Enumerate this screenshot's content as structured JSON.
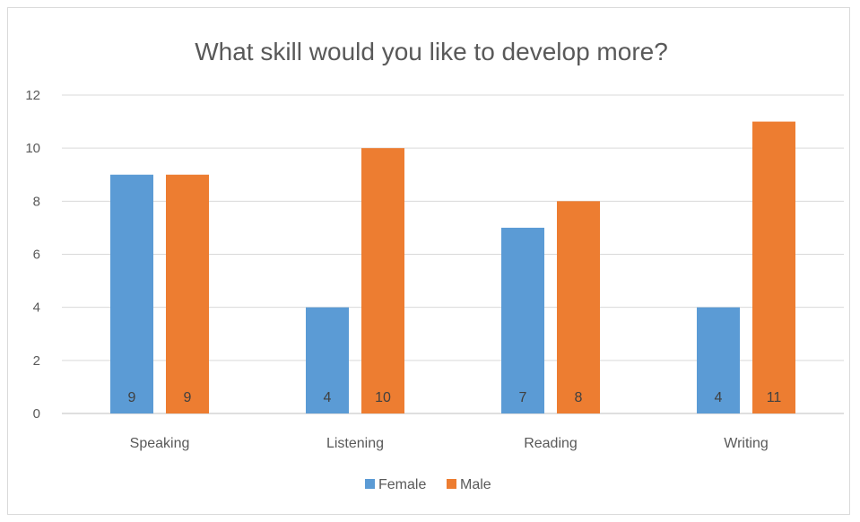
{
  "chart_data": {
    "type": "bar",
    "title": "What skill would you like to develop more?",
    "categories": [
      "Speaking",
      "Listening",
      "Reading",
      "Writing"
    ],
    "series": [
      {
        "name": "Female",
        "values": [
          9,
          4,
          7,
          4
        ],
        "color": "#5B9BD5"
      },
      {
        "name": "Male",
        "values": [
          9,
          10,
          8,
          11
        ],
        "color": "#ED7D31"
      }
    ],
    "ylim": [
      0,
      12
    ],
    "yticks": [
      0,
      2,
      4,
      6,
      8,
      10,
      12
    ],
    "grid": true,
    "legend_position": "bottom",
    "data_labels_position": "inside-base"
  }
}
